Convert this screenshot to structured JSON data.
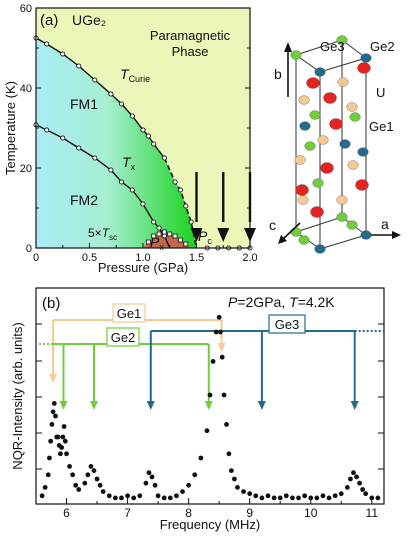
{
  "chart_data": [
    {
      "type": "scatter",
      "panel_label": "(a)",
      "compound": "UGe₂",
      "region_labels": [
        "Paramagnetic",
        "Phase",
        "FM1",
        "FM2"
      ],
      "xlabel": "Pressure (GPa)",
      "ylabel": "Temperature (K)",
      "xlim": [
        0,
        2.0
      ],
      "ylim": [
        0,
        60
      ],
      "xticks": [
        "0",
        "0.5",
        "1.0",
        "1.5",
        "2.0"
      ],
      "yticks": [
        "0",
        "20",
        "40",
        "60"
      ],
      "annotations": {
        "tcurie": {
          "T": "T",
          "sub": "Curie"
        },
        "tx": {
          "T": "T",
          "sub": "x"
        },
        "tsc": {
          "pre": "5×",
          "T": "T",
          "sub": "sc"
        },
        "px": {
          "P": "P",
          "sub": "x"
        },
        "pc": {
          "P": "P",
          "sub": "c"
        }
      },
      "series": [
        {
          "name": "T_Curie",
          "x": [
            0.0,
            0.1,
            0.25,
            0.4,
            0.55,
            0.7,
            0.8,
            0.9,
            1.0,
            1.05,
            1.1,
            1.2,
            1.3,
            1.35,
            1.4,
            1.45
          ],
          "y": [
            52.5,
            51.0,
            48.5,
            45.5,
            42.0,
            38.5,
            36.0,
            33.0,
            29.5,
            28.0,
            26.0,
            22.5,
            16.5,
            14.5,
            10.5,
            6.5
          ]
        },
        {
          "name": "T_x",
          "x": [
            0.0,
            0.1,
            0.25,
            0.4,
            0.55,
            0.7,
            0.8,
            0.9,
            1.0,
            1.1,
            1.15,
            1.2
          ],
          "y": [
            30.8,
            29.5,
            27.5,
            25.0,
            22.5,
            19.5,
            16.5,
            14.5,
            11.0,
            6.5,
            5.0,
            3.0
          ]
        },
        {
          "name": "5xT_sc",
          "x": [
            1.05,
            1.1,
            1.15,
            1.2,
            1.25,
            1.3,
            1.35,
            1.4
          ],
          "y": [
            1.5,
            3.0,
            3.5,
            4.0,
            3.5,
            3.0,
            2.0,
            1.0
          ]
        },
        {
          "name": "NQR points",
          "x": [
            1.6,
            1.7,
            1.8,
            1.9,
            2.0
          ],
          "y": [
            0,
            0,
            0,
            0,
            0
          ]
        }
      ],
      "arrows_at_pressure": [
        1.5,
        1.75,
        2.0
      ]
    },
    {
      "type": "diagram",
      "axes": [
        "b",
        "c",
        "a"
      ],
      "atom_labels": [
        "Ge3",
        "Ge2",
        "U",
        "Ge1"
      ],
      "colors": {
        "U": "#e5241f",
        "Ge1": "#f5c98f",
        "Ge2": "#6fce3a",
        "Ge3": "#236a8c"
      }
    },
    {
      "type": "scatter",
      "panel_label": "(b)",
      "condition": {
        "P": "P",
        "pval": "=2GPa, ",
        "T": "T",
        "tval": "=4.2K"
      },
      "xlabel": "Frequency (MHz)",
      "ylabel": "NQR-Intensity (arb. units)",
      "xlim": [
        5.5,
        11.2
      ],
      "xticks": [
        "6",
        "7",
        "8",
        "9",
        "10",
        "11"
      ],
      "sites": [
        {
          "name": "Ge1",
          "color": "#f5c98f",
          "lines_MHz": [
            5.78,
            8.54
          ]
        },
        {
          "name": "Ge2",
          "color": "#6fce3a",
          "lines_MHz": [
            5.95,
            6.45,
            8.33
          ]
        },
        {
          "name": "Ge3",
          "color": "#236a8c",
          "lines_MHz": [
            7.38,
            9.2,
            10.72
          ]
        }
      ],
      "series": [
        {
          "name": "spectrum",
          "x": [
            5.6,
            5.65,
            5.7,
            5.72,
            5.74,
            5.76,
            5.78,
            5.8,
            5.82,
            5.84,
            5.86,
            5.88,
            5.9,
            5.92,
            5.94,
            5.96,
            5.98,
            6.0,
            6.05,
            6.1,
            6.15,
            6.2,
            6.3,
            6.35,
            6.4,
            6.45,
            6.5,
            6.55,
            6.6,
            6.7,
            6.8,
            6.9,
            7.0,
            7.1,
            7.2,
            7.3,
            7.35,
            7.4,
            7.45,
            7.5,
            7.6,
            7.7,
            7.8,
            7.9,
            8.0,
            8.1,
            8.2,
            8.3,
            8.35,
            8.4,
            8.45,
            8.5,
            8.52,
            8.55,
            8.58,
            8.62,
            8.66,
            8.7,
            8.75,
            8.8,
            8.9,
            9.0,
            9.1,
            9.2,
            9.3,
            9.4,
            9.5,
            9.6,
            9.7,
            9.8,
            9.9,
            10.0,
            10.1,
            10.2,
            10.3,
            10.4,
            10.5,
            10.6,
            10.65,
            10.7,
            10.75,
            10.8,
            10.85,
            10.9,
            11.0,
            11.1
          ],
          "y": [
            0.02,
            0.06,
            0.12,
            0.2,
            0.28,
            0.36,
            0.42,
            0.46,
            0.4,
            0.3,
            0.3,
            0.26,
            0.22,
            0.25,
            0.3,
            0.35,
            0.28,
            0.22,
            0.16,
            0.12,
            0.07,
            0.05,
            0.08,
            0.12,
            0.16,
            0.14,
            0.1,
            0.07,
            0.04,
            0.02,
            0.01,
            0.01,
            0.02,
            0.01,
            0.02,
            0.08,
            0.13,
            0.11,
            0.07,
            0.02,
            0.01,
            0.01,
            0.02,
            0.04,
            0.07,
            0.12,
            0.2,
            0.33,
            0.5,
            0.66,
            0.8,
            0.87,
            0.8,
            0.68,
            0.5,
            0.36,
            0.22,
            0.14,
            0.1,
            0.06,
            0.04,
            0.03,
            0.02,
            0.01,
            0.02,
            0.01,
            0.01,
            0.02,
            0.01,
            0.01,
            0.02,
            0.01,
            0.01,
            0.02,
            0.01,
            0.02,
            0.03,
            0.06,
            0.1,
            0.13,
            0.11,
            0.08,
            0.05,
            0.03,
            0.01,
            0.01
          ]
        }
      ]
    }
  ]
}
